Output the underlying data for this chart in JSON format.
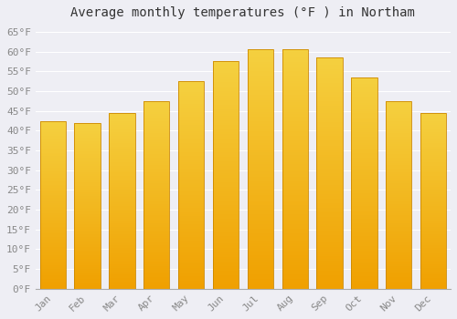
{
  "title": "Average monthly temperatures (°F ) in Northam",
  "months": [
    "Jan",
    "Feb",
    "Mar",
    "Apr",
    "May",
    "Jun",
    "Jul",
    "Aug",
    "Sep",
    "Oct",
    "Nov",
    "Dec"
  ],
  "values": [
    42.5,
    42.0,
    44.5,
    47.5,
    52.5,
    57.5,
    60.5,
    60.5,
    58.5,
    53.5,
    47.5,
    44.5
  ],
  "bar_color_top": "#FFD040",
  "bar_color_bottom": "#F0A000",
  "bar_edge_color": "#CC8800",
  "ylim": [
    0,
    67
  ],
  "yticks": [
    0,
    5,
    10,
    15,
    20,
    25,
    30,
    35,
    40,
    45,
    50,
    55,
    60,
    65
  ],
  "background_color": "#eeeef4",
  "plot_bg_color": "#eeeef4",
  "grid_color": "#ffffff",
  "title_fontsize": 10,
  "tick_fontsize": 8,
  "tick_color": "#888888",
  "font_family": "monospace",
  "bar_width": 0.75
}
